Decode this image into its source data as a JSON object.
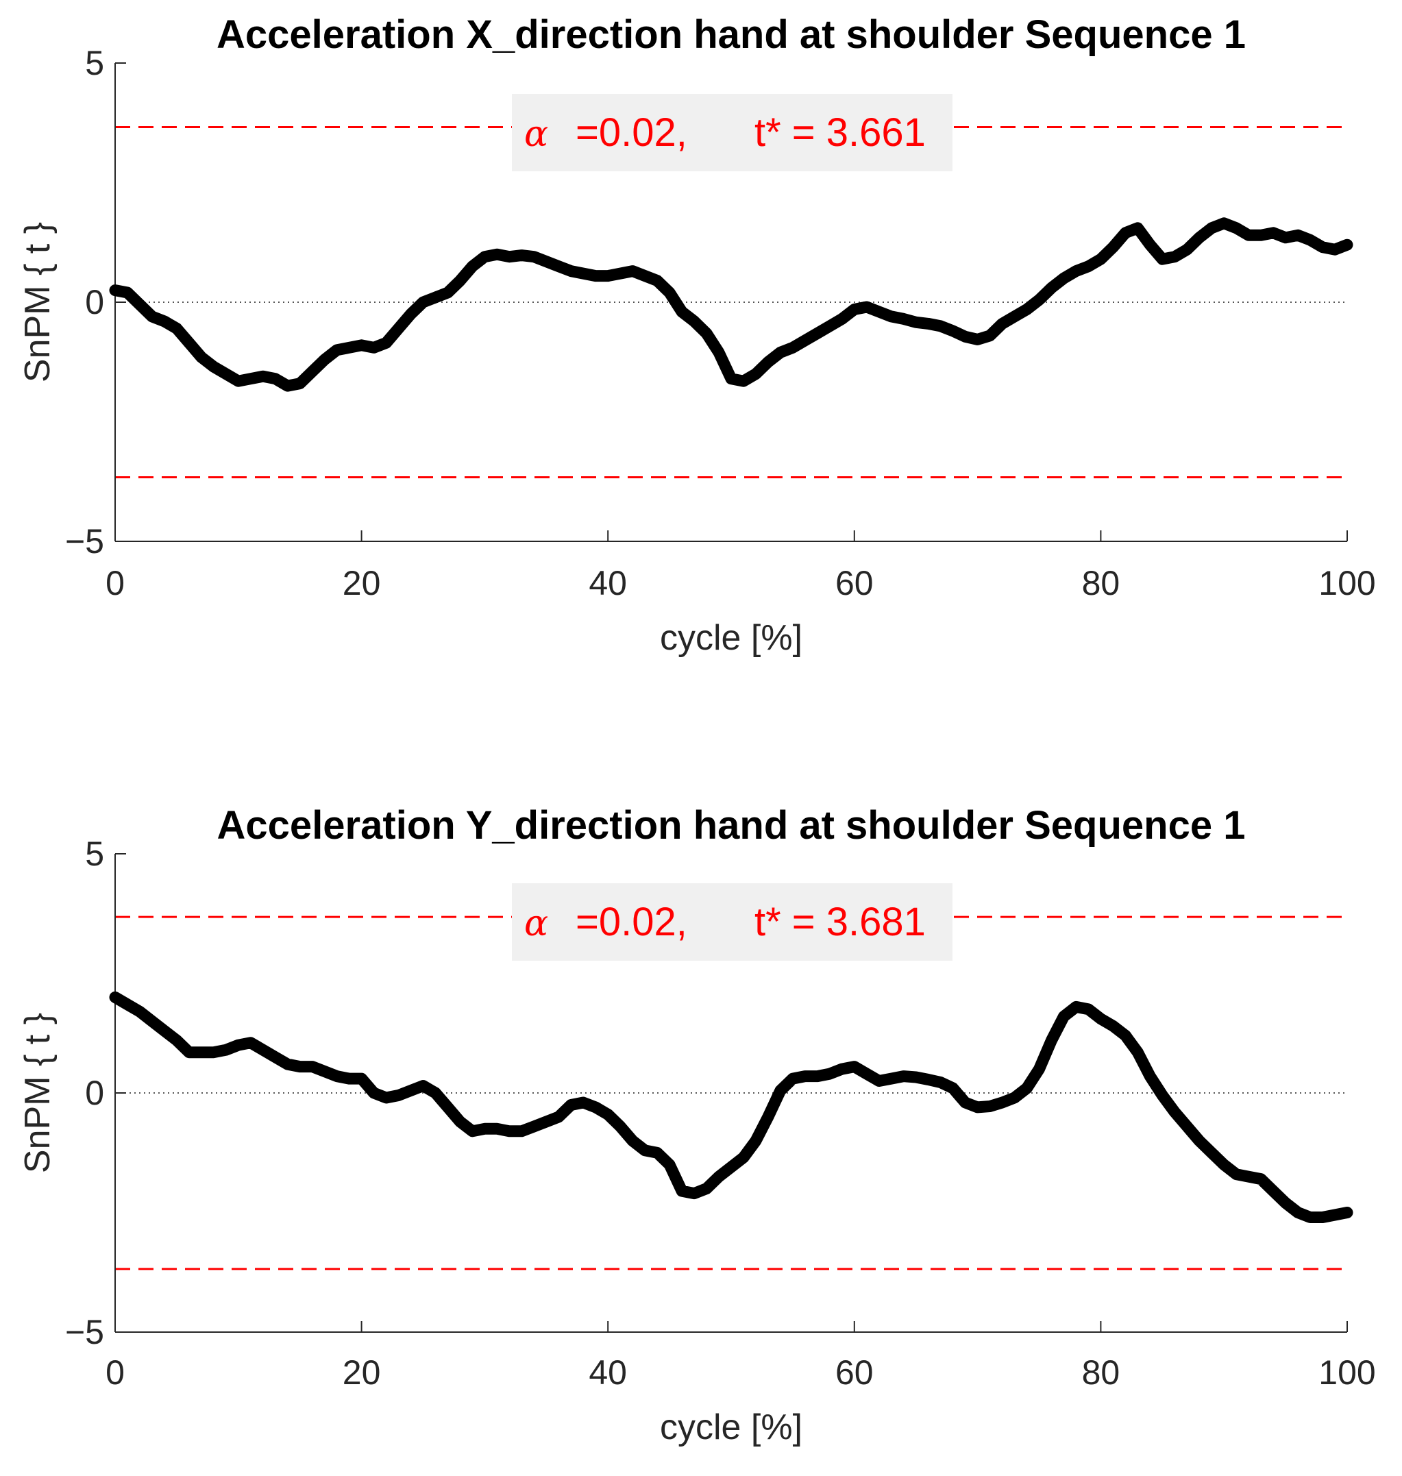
{
  "chart_data": [
    {
      "type": "line",
      "title": "Acceleration X_direction hand at shoulder Sequence 1",
      "xlabel": "cycle [%]",
      "ylabel": "SnPM { t }",
      "xlim": [
        0,
        100
      ],
      "ylim": [
        -5,
        5
      ],
      "xticks": [
        0,
        20,
        40,
        60,
        80,
        100
      ],
      "yticks": [
        -5,
        0,
        5
      ],
      "xtick_labels": [
        "0",
        "20",
        "40",
        "60",
        "80",
        "100"
      ],
      "ytick_labels": [
        "−5",
        "0",
        "5"
      ],
      "threshold": 3.661,
      "threshold_color": "#ff0000",
      "zero_line": true,
      "annotation": {
        "alpha_symbol": "α",
        "alpha_text": "=0.02,",
        "tstar_text": "t* = 3.661"
      },
      "series": [
        {
          "name": "SnPM t",
          "color": "#000000",
          "x": [
            0,
            1,
            2,
            3,
            4,
            5,
            6,
            7,
            8,
            9,
            10,
            11,
            12,
            13,
            14,
            15,
            16,
            17,
            18,
            19,
            20,
            21,
            22,
            23,
            24,
            25,
            26,
            27,
            28,
            29,
            30,
            31,
            32,
            33,
            34,
            35,
            36,
            37,
            38,
            39,
            40,
            41,
            42,
            43,
            44,
            45,
            46,
            47,
            48,
            49,
            50,
            51,
            52,
            53,
            54,
            55,
            56,
            57,
            58,
            59,
            60,
            61,
            62,
            63,
            64,
            65,
            66,
            67,
            68,
            69,
            70,
            71,
            72,
            73,
            74,
            75,
            76,
            77,
            78,
            79,
            80,
            81,
            82,
            83,
            84,
            85,
            86,
            87,
            88,
            89,
            90,
            91,
            92,
            93,
            94,
            95,
            96,
            97,
            98,
            99,
            100
          ],
          "values": [
            0.25,
            0.2,
            -0.05,
            -0.3,
            -0.4,
            -0.55,
            -0.85,
            -1.15,
            -1.35,
            -1.5,
            -1.65,
            -1.6,
            -1.55,
            -1.6,
            -1.75,
            -1.7,
            -1.45,
            -1.2,
            -1.0,
            -0.95,
            -0.9,
            -0.95,
            -0.85,
            -0.55,
            -0.25,
            0.0,
            0.1,
            0.2,
            0.45,
            0.75,
            0.95,
            1.0,
            0.95,
            0.98,
            0.95,
            0.85,
            0.75,
            0.65,
            0.6,
            0.55,
            0.55,
            0.6,
            0.65,
            0.55,
            0.45,
            0.2,
            -0.2,
            -0.4,
            -0.65,
            -1.05,
            -1.6,
            -1.65,
            -1.5,
            -1.25,
            -1.05,
            -0.95,
            -0.8,
            -0.65,
            -0.5,
            -0.35,
            -0.15,
            -0.1,
            -0.2,
            -0.3,
            -0.35,
            -0.42,
            -0.45,
            -0.5,
            -0.6,
            -0.72,
            -0.78,
            -0.7,
            -0.45,
            -0.3,
            -0.15,
            0.05,
            0.3,
            0.5,
            0.65,
            0.75,
            0.9,
            1.15,
            1.45,
            1.55,
            1.2,
            0.9,
            0.95,
            1.1,
            1.35,
            1.55,
            1.65,
            1.55,
            1.4,
            1.4,
            1.45,
            1.35,
            1.4,
            1.3,
            1.15,
            1.1,
            1.2
          ]
        }
      ]
    },
    {
      "type": "line",
      "title": "Acceleration Y_direction hand at shoulder Sequence 1",
      "xlabel": "cycle [%]",
      "ylabel": "SnPM { t }",
      "xlim": [
        0,
        100
      ],
      "ylim": [
        -5,
        5
      ],
      "xticks": [
        0,
        20,
        40,
        60,
        80,
        100
      ],
      "yticks": [
        -5,
        0,
        5
      ],
      "xtick_labels": [
        "0",
        "20",
        "40",
        "60",
        "80",
        "100"
      ],
      "ytick_labels": [
        "−5",
        "0",
        "5"
      ],
      "threshold": 3.681,
      "threshold_color": "#ff0000",
      "zero_line": true,
      "annotation": {
        "alpha_symbol": "α",
        "alpha_text": "=0.02,",
        "tstar_text": "t* = 3.681"
      },
      "series": [
        {
          "name": "SnPM t",
          "color": "#000000",
          "x": [
            0,
            1,
            2,
            3,
            4,
            5,
            6,
            7,
            8,
            9,
            10,
            11,
            12,
            13,
            14,
            15,
            16,
            17,
            18,
            19,
            20,
            21,
            22,
            23,
            24,
            25,
            26,
            27,
            28,
            29,
            30,
            31,
            32,
            33,
            34,
            35,
            36,
            37,
            38,
            39,
            40,
            41,
            42,
            43,
            44,
            45,
            46,
            47,
            48,
            49,
            50,
            51,
            52,
            53,
            54,
            55,
            56,
            57,
            58,
            59,
            60,
            61,
            62,
            63,
            64,
            65,
            66,
            67,
            68,
            69,
            70,
            71,
            72,
            73,
            74,
            75,
            76,
            77,
            78,
            79,
            80,
            81,
            82,
            83,
            84,
            85,
            86,
            87,
            88,
            89,
            90,
            91,
            92,
            93,
            94,
            95,
            96,
            97,
            98,
            99,
            100
          ],
          "values": [
            2.0,
            1.85,
            1.7,
            1.5,
            1.3,
            1.1,
            0.85,
            0.85,
            0.85,
            0.9,
            1.0,
            1.05,
            0.9,
            0.75,
            0.6,
            0.55,
            0.55,
            0.45,
            0.35,
            0.3,
            0.3,
            0.0,
            -0.1,
            -0.05,
            0.05,
            0.15,
            0.0,
            -0.3,
            -0.6,
            -0.8,
            -0.75,
            -0.75,
            -0.8,
            -0.8,
            -0.7,
            -0.6,
            -0.5,
            -0.25,
            -0.2,
            -0.3,
            -0.45,
            -0.7,
            -1.0,
            -1.2,
            -1.25,
            -1.5,
            -2.05,
            -2.1,
            -2.0,
            -1.75,
            -1.55,
            -1.35,
            -1.0,
            -0.5,
            0.05,
            0.3,
            0.35,
            0.35,
            0.4,
            0.5,
            0.55,
            0.4,
            0.25,
            0.3,
            0.35,
            0.33,
            0.28,
            0.22,
            0.1,
            -0.2,
            -0.3,
            -0.28,
            -0.2,
            -0.1,
            0.1,
            0.5,
            1.1,
            1.6,
            1.8,
            1.75,
            1.55,
            1.4,
            1.2,
            0.85,
            0.35,
            -0.05,
            -0.4,
            -0.7,
            -1.0,
            -1.25,
            -1.5,
            -1.7,
            -1.75,
            -1.8,
            -2.05,
            -2.3,
            -2.5,
            -2.6,
            -2.6,
            -2.55,
            -2.5
          ]
        }
      ]
    }
  ]
}
